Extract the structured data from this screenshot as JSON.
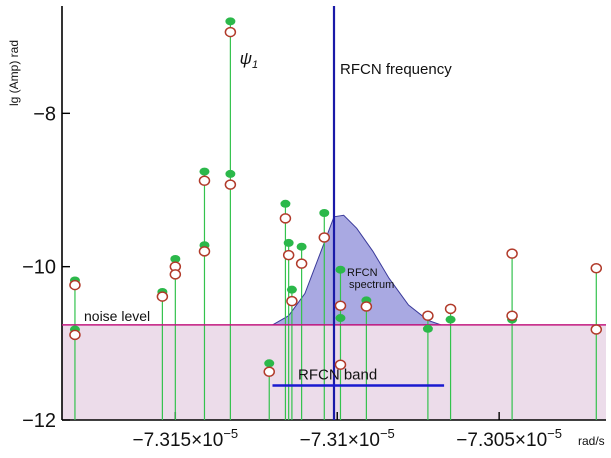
{
  "chart_data": {
    "type": "scatter",
    "title": "",
    "xlabel": "rad/s",
    "ylabel": "lg (Amp) rad",
    "xlim": [
      -7.3185e-05,
      -7.3017e-05
    ],
    "ylim": [
      -12,
      -6.6
    ],
    "x_ticks": [
      {
        "value": -7.315e-05,
        "label": "−7.315×10"
      },
      {
        "value": -7.31e-05,
        "label": "−7.31×10"
      },
      {
        "value": -7.305e-05,
        "label": "−7.305×10"
      }
    ],
    "x_tick_exponent": "−5",
    "y_ticks": [
      {
        "value": -8,
        "label": "−8"
      },
      {
        "value": -10,
        "label": "−10"
      },
      {
        "value": -12,
        "label": "−12"
      }
    ],
    "series": [
      {
        "marker": "filled",
        "color": "#2bb84a",
        "points": [
          {
            "x": -7.3181e-05,
            "y": -10.18
          },
          {
            "x": -7.3181e-05,
            "y": -10.82
          },
          {
            "x": -7.3154e-05,
            "y": -10.33
          },
          {
            "x": -7.315e-05,
            "y": -9.9
          },
          {
            "x": -7.3141e-05,
            "y": -8.76
          },
          {
            "x": -7.3141e-05,
            "y": -9.72
          },
          {
            "x": -7.3133e-05,
            "y": -6.8
          },
          {
            "x": -7.3133e-05,
            "y": -8.79
          },
          {
            "x": -7.3121e-05,
            "y": -11.26
          },
          {
            "x": -7.3116e-05,
            "y": -9.18
          },
          {
            "x": -7.3115e-05,
            "y": -9.69
          },
          {
            "x": -7.3114e-05,
            "y": -10.3
          },
          {
            "x": -7.3111e-05,
            "y": -9.74
          },
          {
            "x": -7.3104e-05,
            "y": -9.3
          },
          {
            "x": -7.3099e-05,
            "y": -10.04
          },
          {
            "x": -7.3099e-05,
            "y": -10.67
          },
          {
            "x": -7.3091e-05,
            "y": -10.44
          },
          {
            "x": -7.3072e-05,
            "y": -10.81
          },
          {
            "x": -7.3065e-05,
            "y": -10.69
          },
          {
            "x": -7.3046e-05,
            "y": -10.69
          },
          {
            "x": -7.3046e-05,
            "y": -9.84
          },
          {
            "x": -7.302e-05,
            "y": -10.02
          },
          {
            "x": -7.302e-05,
            "y": -10.82
          }
        ]
      },
      {
        "marker": "open",
        "color": "#b13a2a",
        "points": [
          {
            "x": -7.3181e-05,
            "y": -10.24
          },
          {
            "x": -7.3181e-05,
            "y": -10.89
          },
          {
            "x": -7.3154e-05,
            "y": -10.39
          },
          {
            "x": -7.315e-05,
            "y": -10.0
          },
          {
            "x": -7.315e-05,
            "y": -10.1
          },
          {
            "x": -7.3141e-05,
            "y": -8.88
          },
          {
            "x": -7.3141e-05,
            "y": -9.8
          },
          {
            "x": -7.3133e-05,
            "y": -6.94
          },
          {
            "x": -7.3133e-05,
            "y": -8.93
          },
          {
            "x": -7.3121e-05,
            "y": -11.37
          },
          {
            "x": -7.3116e-05,
            "y": -9.37
          },
          {
            "x": -7.3115e-05,
            "y": -9.85
          },
          {
            "x": -7.3114e-05,
            "y": -10.45
          },
          {
            "x": -7.3111e-05,
            "y": -9.96
          },
          {
            "x": -7.3104e-05,
            "y": -9.62
          },
          {
            "x": -7.3099e-05,
            "y": -10.51
          },
          {
            "x": -7.3099e-05,
            "y": -11.28
          },
          {
            "x": -7.3091e-05,
            "y": -10.52
          },
          {
            "x": -7.3072e-05,
            "y": -10.64
          },
          {
            "x": -7.3065e-05,
            "y": -10.55
          },
          {
            "x": -7.3046e-05,
            "y": -10.64
          },
          {
            "x": -7.3046e-05,
            "y": -9.83
          },
          {
            "x": -7.302e-05,
            "y": -10.02
          },
          {
            "x": -7.302e-05,
            "y": -10.82
          }
        ]
      }
    ],
    "noise_level": {
      "y": -10.76,
      "label": "noise level",
      "color": "#c2187f",
      "fill": "#ecdcea"
    },
    "rfcn_frequency": {
      "x": -7.3101e-05,
      "label": "RFCN frequency",
      "color": "#1a1aa8"
    },
    "rfcn_band": {
      "x_from": -7.312e-05,
      "x_to": -7.3067e-05,
      "y": -11.55,
      "label": "RFCN  band",
      "color": "#1a1ad0"
    },
    "rfcn_spectrum": {
      "label": [
        "RFCN",
        "spectrum"
      ],
      "fill": "#a9a9e2",
      "stroke": "#3a3a9a",
      "outline": [
        {
          "x": -7.312e-05,
          "y": -10.76
        },
        {
          "x": -7.3115e-05,
          "y": -10.64
        },
        {
          "x": -7.311e-05,
          "y": -10.35
        },
        {
          "x": -7.3105e-05,
          "y": -9.8
        },
        {
          "x": -7.3101e-05,
          "y": -9.35
        },
        {
          "x": -7.3098e-05,
          "y": -9.33
        },
        {
          "x": -7.3094e-05,
          "y": -9.5
        },
        {
          "x": -7.3089e-05,
          "y": -9.8
        },
        {
          "x": -7.3084e-05,
          "y": -10.15
        },
        {
          "x": -7.3078e-05,
          "y": -10.5
        },
        {
          "x": -7.3072e-05,
          "y": -10.7
        },
        {
          "x": -7.3068e-05,
          "y": -10.76
        }
      ]
    },
    "annotations": [
      {
        "text": "ψ",
        "subscript": "1",
        "x": -7.3132e-05,
        "y": -7.28
      }
    ],
    "grid": false,
    "legend": "none"
  }
}
